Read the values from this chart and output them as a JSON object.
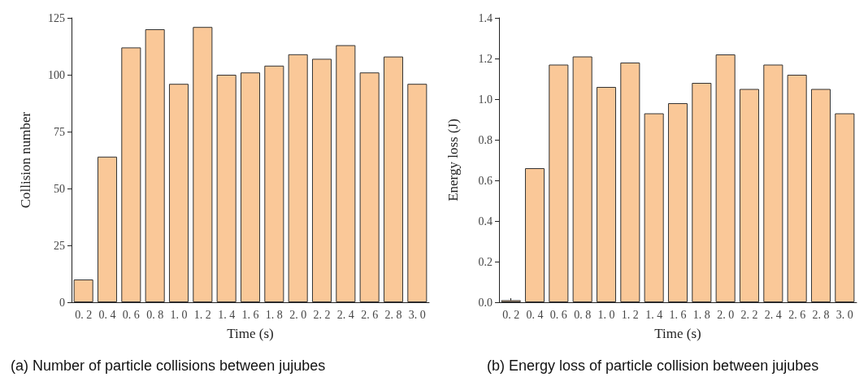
{
  "chart_data": [
    {
      "type": "bar",
      "title": "(a) Number of particle collisions between jujubes",
      "xlabel": "Time (s)",
      "ylabel": "Collision number",
      "categories": [
        "0. 2",
        "0. 4",
        "0. 6",
        "0. 8",
        "1. 0",
        "1. 2",
        "1. 4",
        "1. 6",
        "1. 8",
        "2. 0",
        "2. 2",
        "2. 4",
        "2. 6",
        "2. 8",
        "3. 0"
      ],
      "values": [
        10,
        64,
        112,
        120,
        96,
        121,
        100,
        101,
        104,
        109,
        107,
        113,
        101,
        108,
        96
      ],
      "color": "#fac898",
      "ylim": [
        0,
        125
      ],
      "yticks": [
        0,
        25,
        50,
        75,
        100,
        125
      ],
      "grid": false
    },
    {
      "type": "bar",
      "title": "(b) Energy loss of particle collision between jujubes",
      "xlabel": "Time (s)",
      "ylabel": "Energy loss (J)",
      "categories": [
        "0. 2",
        "0. 4",
        "0. 6",
        "0. 8",
        "1. 0",
        "1. 2",
        "1. 4",
        "1. 6",
        "1. 8",
        "2. 0",
        "2. 2",
        "2. 4",
        "2. 6",
        "2. 8",
        "3. 0"
      ],
      "values": [
        0.01,
        0.66,
        1.17,
        1.21,
        1.06,
        1.18,
        0.93,
        0.98,
        1.08,
        1.22,
        1.05,
        1.17,
        1.12,
        1.05,
        0.93
      ],
      "color": "#fac898",
      "ylim": [
        0,
        1.4
      ],
      "yticks": [
        {
          "value": 0,
          "label": "0.0"
        },
        0.2,
        0.4,
        0.6,
        0.8,
        {
          "value": 1.0,
          "label": "1.0"
        },
        1.2,
        1.4
      ],
      "grid": false
    }
  ]
}
